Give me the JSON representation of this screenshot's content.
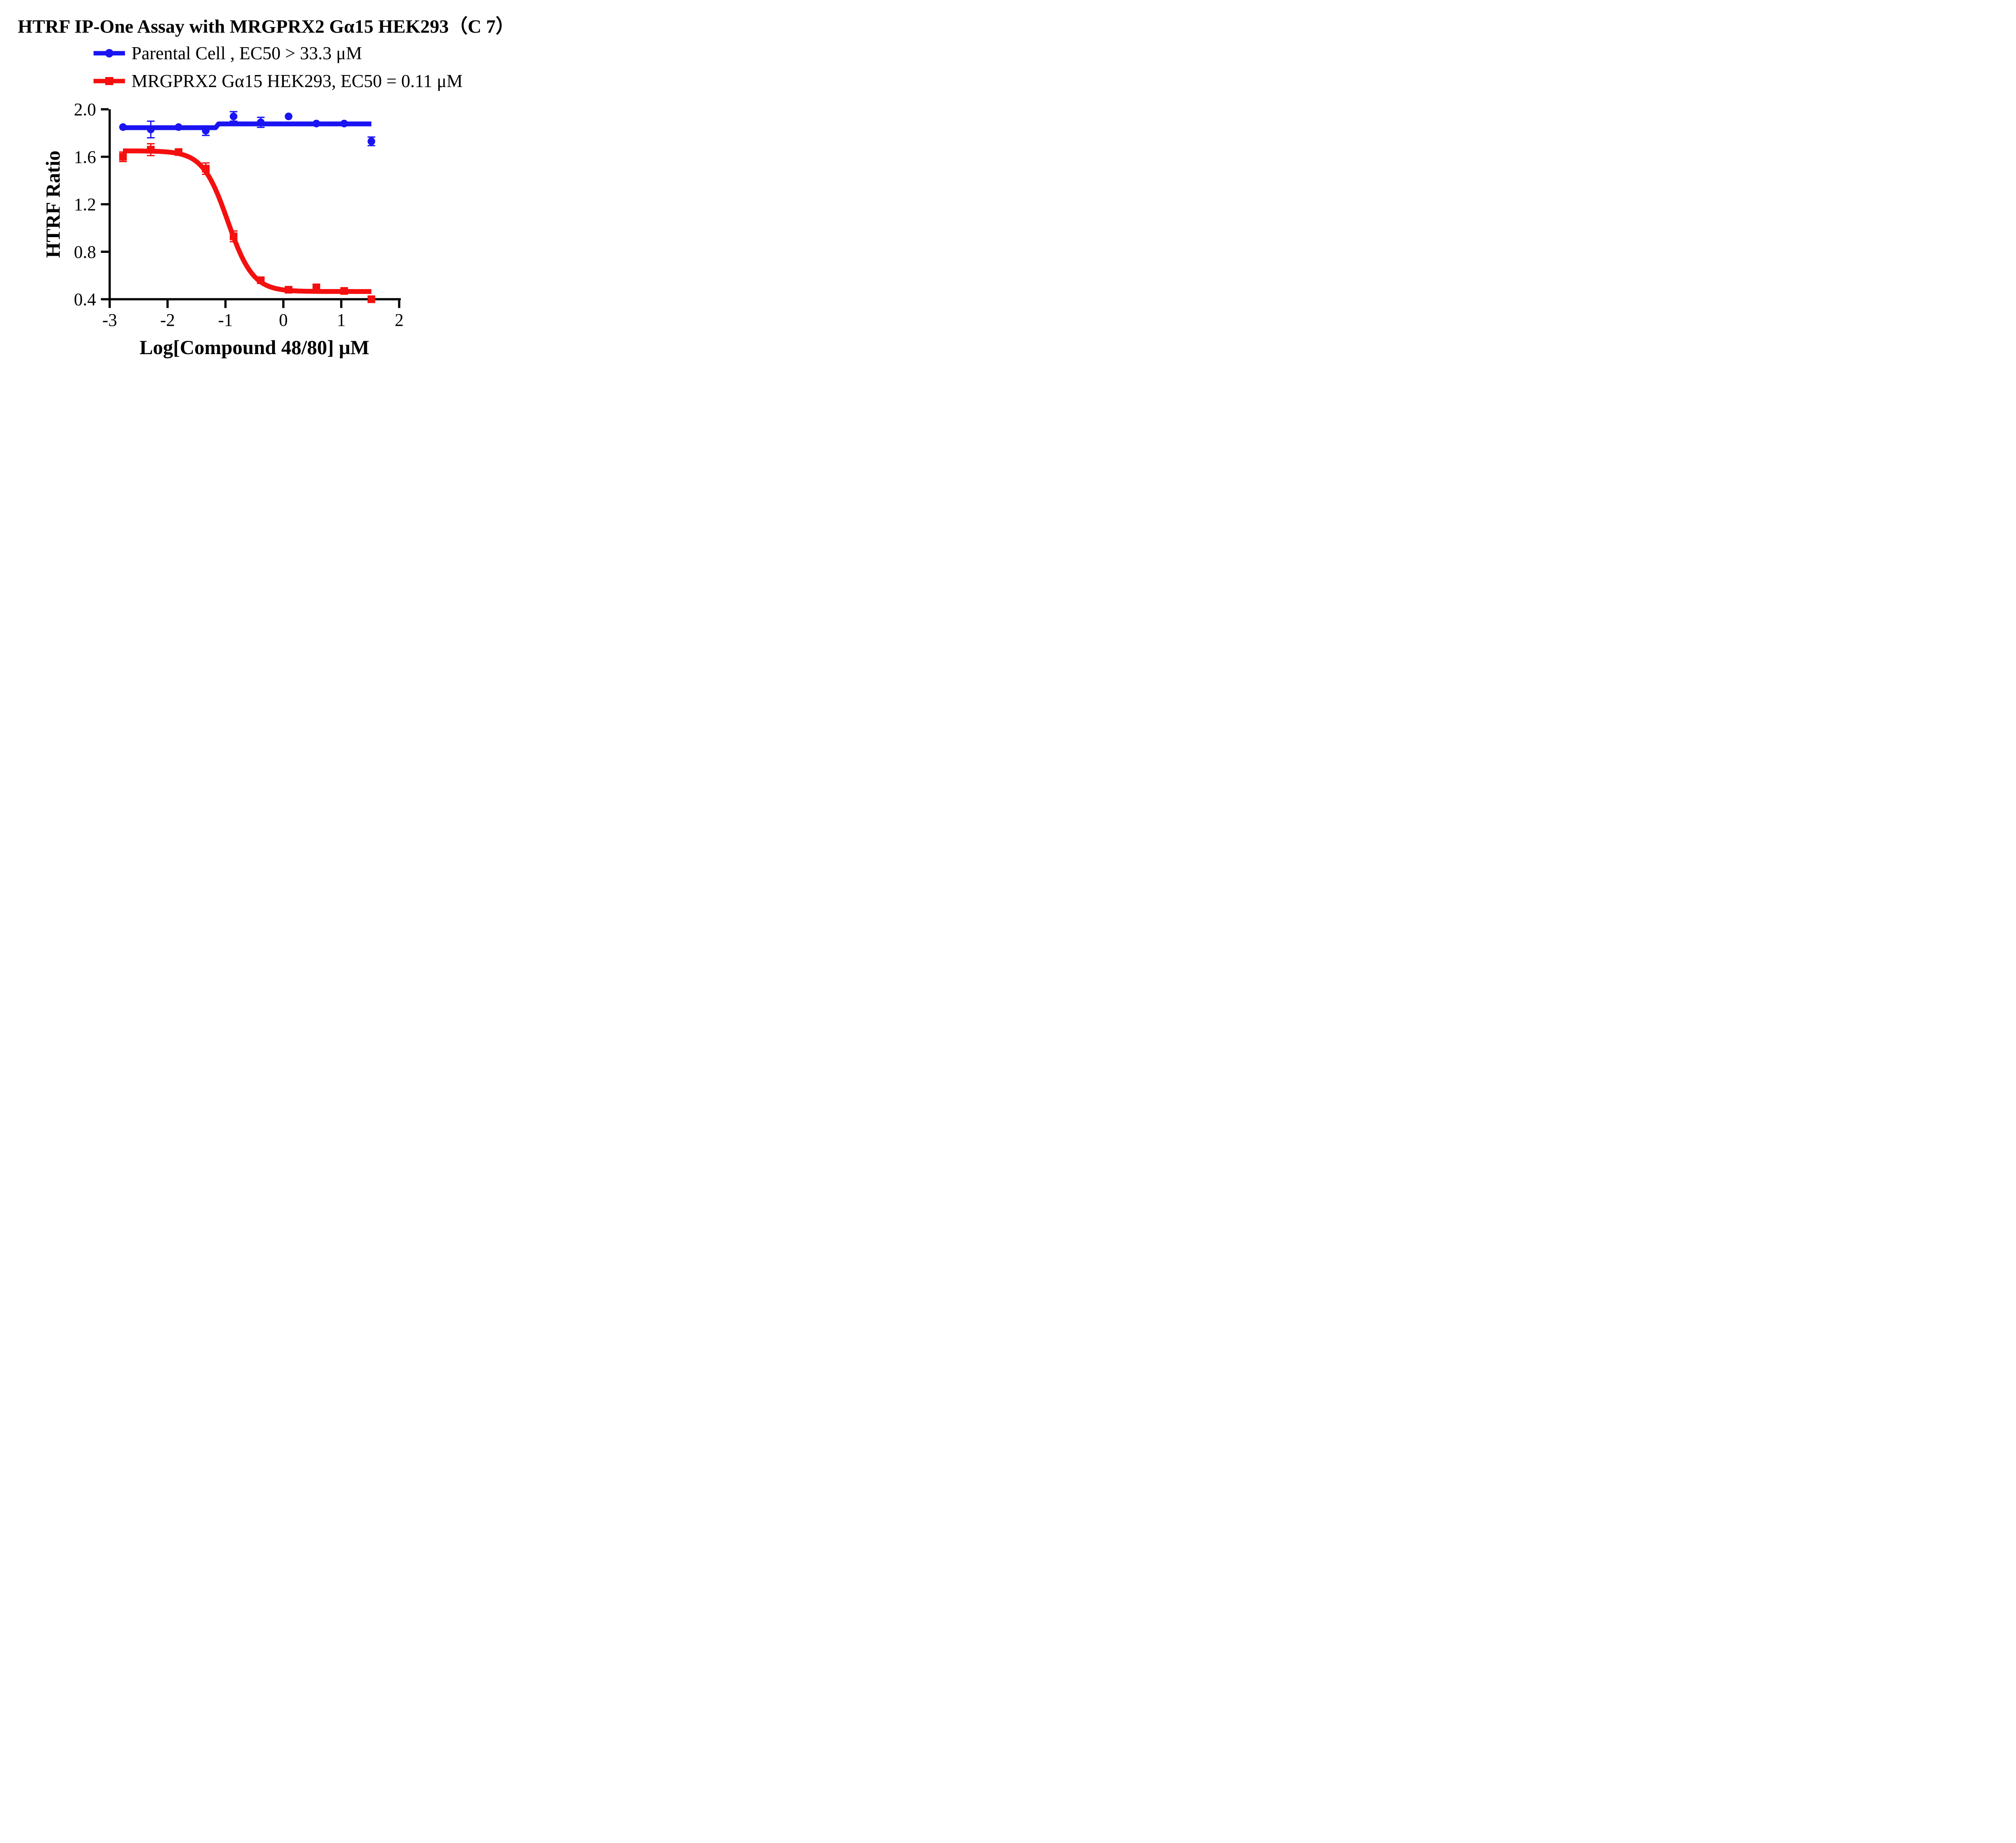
{
  "title": "HTRF IP-One Assay with MRGPRX2 Gα15 HEK293（C 7）",
  "legend": [
    {
      "label": "Parental Cell ,  EC50 > 33.3 μM",
      "color": "#1A14F2",
      "marker": "circle"
    },
    {
      "label": "MRGPRX2 Gα15 HEK293,  EC50 = 0.11 μM",
      "color": "#F50F0F",
      "marker": "square"
    }
  ],
  "chart_data": {
    "type": "scatter",
    "title": "HTRF IP-One Assay with MRGPRX2 Gα15 HEK293（C 7）",
    "xlabel": "Log[Compound 48/80] μM",
    "ylabel": "HTRF Ratio",
    "xlim": [
      -3,
      2
    ],
    "ylim": [
      0.4,
      2.0
    ],
    "xticks": [
      -3,
      -2,
      -1,
      0,
      1,
      2
    ],
    "xtick_labels": [
      "-3",
      "-2",
      "-1",
      "0",
      "1",
      "2"
    ],
    "yticks": [
      0.4,
      0.8,
      1.2,
      1.6,
      2.0
    ],
    "ytick_labels": [
      "0.4",
      "0.8",
      "1.2",
      "1.6",
      "2.0"
    ],
    "grid": false,
    "legend_position": "top-left",
    "series": [
      {
        "name": "Parental Cell",
        "key": "parental-cell",
        "ec50_text": "EC50 > 33.3 μM",
        "color": "#1A14F2",
        "marker": "circle",
        "x": [
          -2.77,
          -2.29,
          -1.81,
          -1.34,
          -0.86,
          -0.39,
          0.09,
          0.57,
          1.05,
          1.52
        ],
        "y": [
          1.85,
          1.83,
          1.85,
          1.82,
          1.94,
          1.89,
          1.94,
          1.88,
          1.88,
          1.73
        ],
        "yerr": [
          0,
          0.07,
          0,
          0.04,
          0.04,
          0.042,
          0,
          0,
          0,
          0.036
        ],
        "fit": {
          "type": "polyline",
          "points": [
            [
              -2.77,
              1.845
            ],
            [
              -1.17,
              1.845
            ],
            [
              -1.12,
              1.877
            ],
            [
              1.52,
              1.877
            ]
          ]
        }
      },
      {
        "name": "MRGPRX2 Gα15 HEK293",
        "key": "mrgprx2-ga15-hek293",
        "ec50_text": "EC50 = 0.11 μM",
        "color": "#F50F0F",
        "marker": "square",
        "x": [
          -2.77,
          -2.29,
          -1.81,
          -1.34,
          -0.86,
          -0.39,
          0.09,
          0.57,
          1.05,
          1.52
        ],
        "y": [
          1.6,
          1.66,
          1.64,
          1.5,
          0.93,
          0.56,
          0.48,
          0.5,
          0.47,
          0.4
        ],
        "yerr": [
          0.04,
          0.05,
          0,
          0.048,
          0.045,
          0,
          0,
          0,
          0,
          0
        ],
        "fit": {
          "type": "4pl",
          "top": 1.65,
          "bottom": 0.465,
          "logec50": -0.96,
          "hill": 2.0,
          "range": [
            -2.77,
            1.52
          ]
        }
      }
    ]
  }
}
